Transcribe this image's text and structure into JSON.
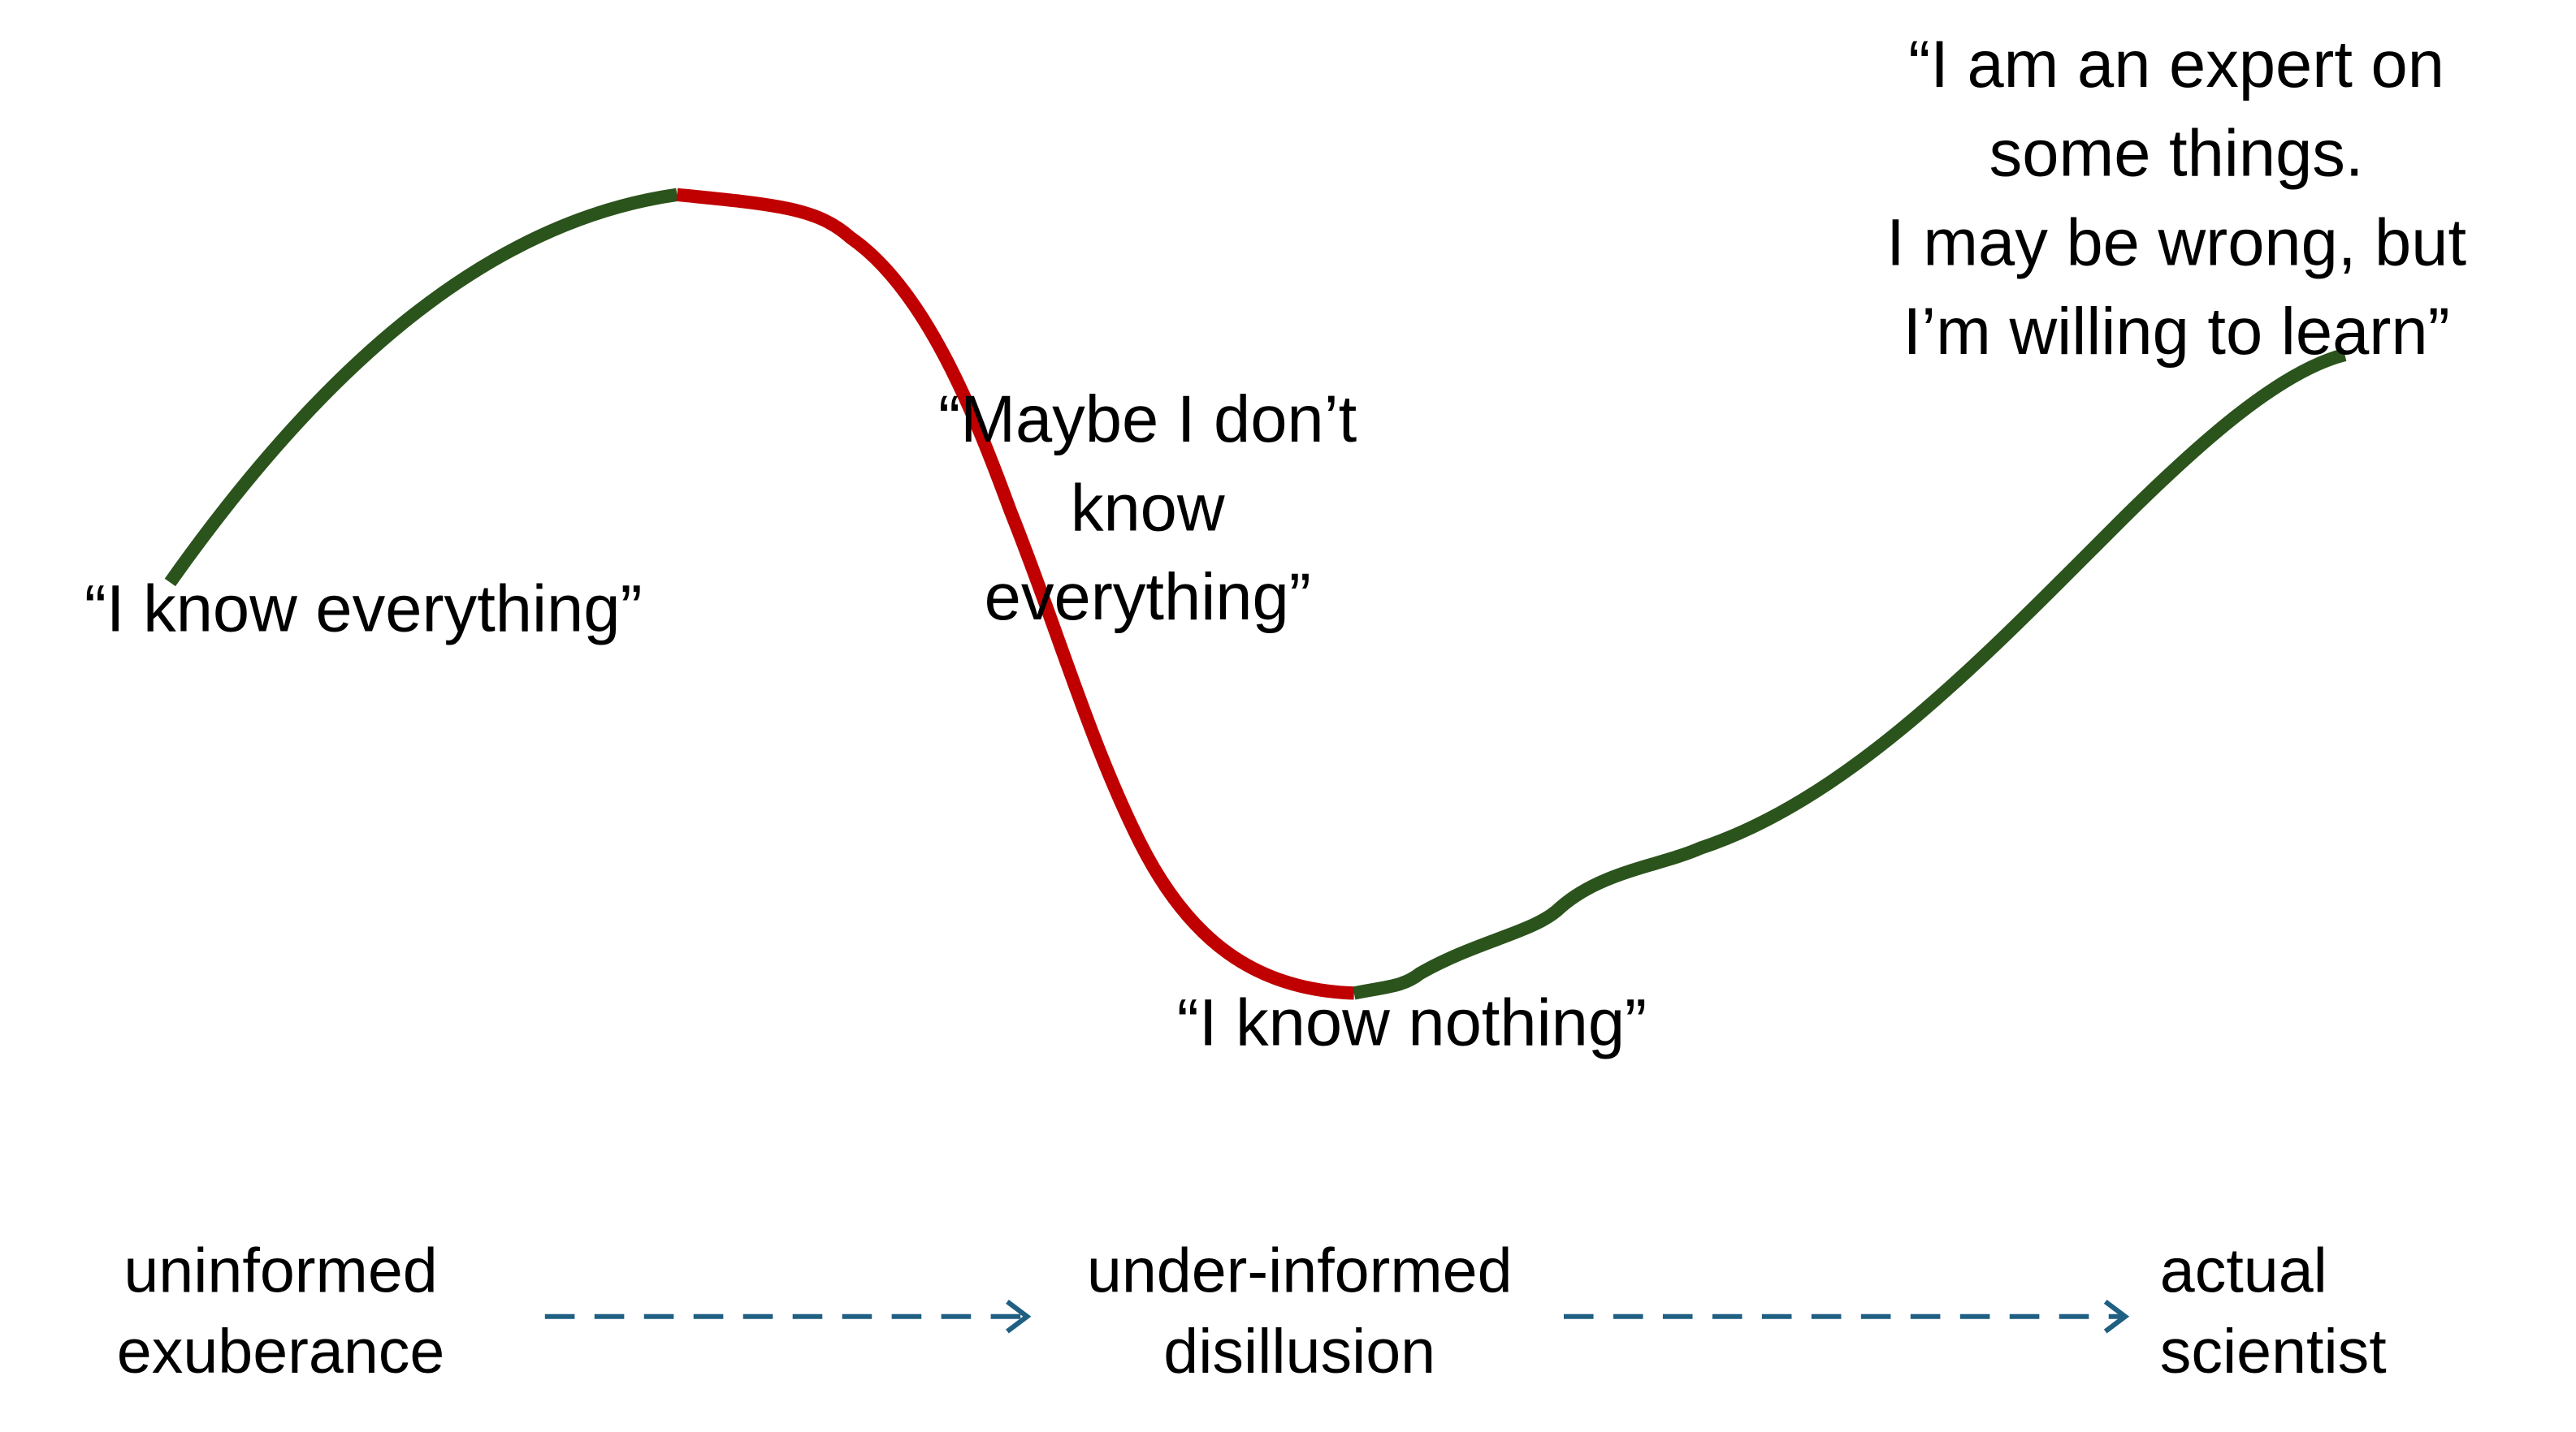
{
  "quotes": [
    {
      "lines": [
        "“I know everything”"
      ]
    },
    {
      "lines": [
        "“Maybe I don’t",
        "know",
        "everything”"
      ]
    },
    {
      "lines": [
        "“I know nothing”"
      ]
    },
    {
      "lines": [
        "“I am an expert on",
        "some things.",
        "I may be wrong, but",
        "I’m willing to learn”"
      ]
    }
  ],
  "stages": [
    {
      "lines": [
        "uninformed",
        "exuberance"
      ]
    },
    {
      "lines": [
        "under-informed",
        "disillusion"
      ]
    },
    {
      "lines": [
        "actual",
        "scientist"
      ]
    }
  ]
}
